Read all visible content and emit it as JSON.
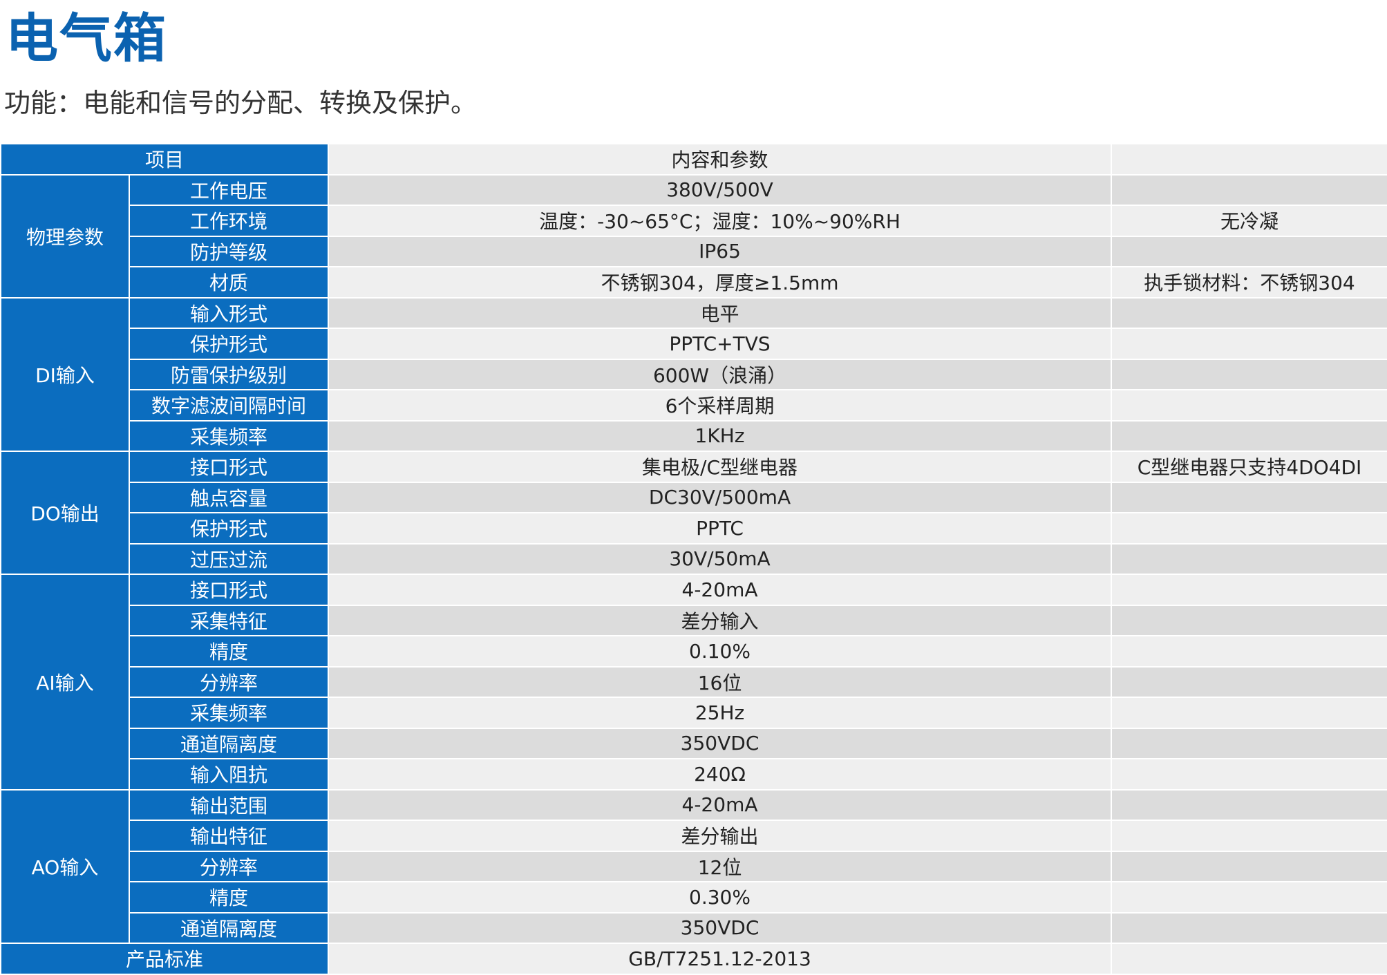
{
  "header": {
    "title": "电气箱",
    "subtitle": "功能：电能和信号的分配、转换及保护。"
  },
  "table": {
    "head": {
      "item": "项目",
      "content": "内容和参数"
    },
    "groups": [
      {
        "name": "物理参数",
        "rows": [
          {
            "item": "工作电压",
            "content": "380V/500V"
          },
          {
            "item": "工作环境",
            "content": "温度：-30~65°C；湿度：10%~90%RH",
            "note": "无冷凝"
          },
          {
            "item": "防护等级",
            "content": "IP65"
          },
          {
            "item": "材质",
            "content": "不锈钢304，厚度≥1.5mm",
            "note": "执手锁材料：不锈钢304"
          }
        ]
      },
      {
        "name": "DI输入",
        "rows": [
          {
            "item": "输入形式",
            "content": "电平"
          },
          {
            "item": "保护形式",
            "content": "PPTC+TVS"
          },
          {
            "item": "防雷保护级别",
            "content": "600W（浪涌）"
          },
          {
            "item": "数字滤波间隔时间",
            "content": "6个采样周期"
          },
          {
            "item": "采集频率",
            "content": "1KHz"
          }
        ]
      },
      {
        "name": "DO输出",
        "rows": [
          {
            "item": "接口形式",
            "content": "集电极/C型继电器",
            "note": "C型继电器只支持4DO4DI"
          },
          {
            "item": "触点容量",
            "content": "DC30V/500mA"
          },
          {
            "item": "保护形式",
            "content": "PPTC"
          },
          {
            "item": "过压过流",
            "content": "30V/50mA"
          }
        ]
      },
      {
        "name": "AI输入",
        "rows": [
          {
            "item": "接口形式",
            "content": "4-20mA"
          },
          {
            "item": "采集特征",
            "content": "差分输入"
          },
          {
            "item": "精度",
            "content": "0.10%"
          },
          {
            "item": "分辨率",
            "content": "16位"
          },
          {
            "item": "采集频率",
            "content": "25Hz"
          },
          {
            "item": "通道隔离度",
            "content": "350VDC"
          },
          {
            "item": "输入阻抗",
            "content": "240Ω"
          }
        ]
      },
      {
        "name": "AO输入",
        "rows": [
          {
            "item": "输出范围",
            "content": "4-20mA"
          },
          {
            "item": "输出特征",
            "content": "差分输出"
          },
          {
            "item": "分辨率",
            "content": "12位"
          },
          {
            "item": "精度",
            "content": "0.30%"
          },
          {
            "item": "通道隔离度",
            "content": "350VDC"
          }
        ]
      }
    ],
    "foot": {
      "item": "产品标准",
      "content": "GB/T7251.12-2013"
    }
  }
}
